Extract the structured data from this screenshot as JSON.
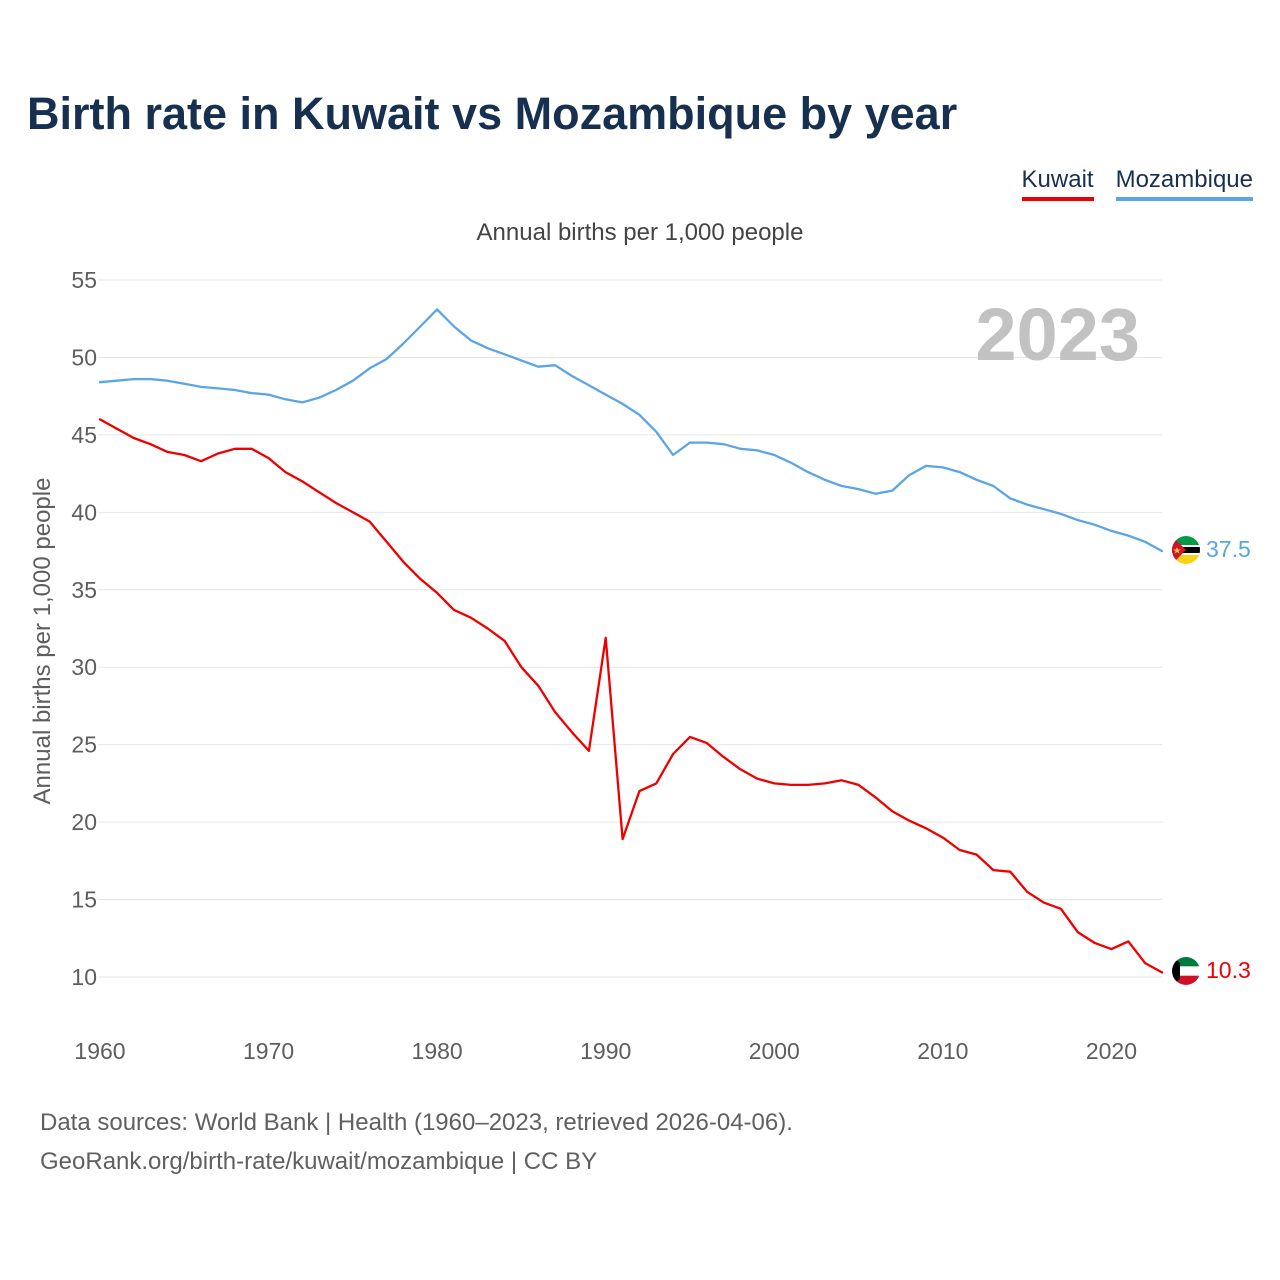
{
  "title": "Birth rate in Kuwait vs Mozambique by year",
  "legend": [
    {
      "label": "Kuwait",
      "color": "#ee0000"
    },
    {
      "label": "Mozambique",
      "color": "#5aa5e6"
    }
  ],
  "subtitle": "Annual births per 1,000 people",
  "year_watermark": "2023",
  "footer": {
    "line1": "Data sources: World Bank | Health (1960–2023, retrieved 2026-04-06).",
    "line2": "GeoRank.org/birth-rate/kuwait/mozambique | CC BY"
  },
  "chart_data": {
    "type": "line",
    "title": "Birth rate in Kuwait vs Mozambique by year",
    "subtitle": "Annual births per 1,000 people",
    "xlabel": "",
    "ylabel": "Annual births per 1,000 people",
    "xlim": [
      1960,
      2023
    ],
    "ylim": [
      10,
      55
    ],
    "x_ticks": [
      1960,
      1970,
      1980,
      1990,
      2000,
      2010,
      2020
    ],
    "y_ticks": [
      10,
      15,
      20,
      25,
      30,
      35,
      40,
      45,
      50,
      55
    ],
    "grid": true,
    "legend_position": "top-right",
    "x": [
      1960,
      1961,
      1962,
      1963,
      1964,
      1965,
      1966,
      1967,
      1968,
      1969,
      1970,
      1971,
      1972,
      1973,
      1974,
      1975,
      1976,
      1977,
      1978,
      1979,
      1980,
      1981,
      1982,
      1983,
      1984,
      1985,
      1986,
      1987,
      1988,
      1989,
      1990,
      1991,
      1992,
      1993,
      1994,
      1995,
      1996,
      1997,
      1998,
      1999,
      2000,
      2001,
      2002,
      2003,
      2004,
      2005,
      2006,
      2007,
      2008,
      2009,
      2010,
      2011,
      2012,
      2013,
      2014,
      2015,
      2016,
      2017,
      2018,
      2019,
      2020,
      2021,
      2022,
      2023
    ],
    "series": [
      {
        "name": "Kuwait",
        "color": "#ee0000",
        "end_label": "10.3",
        "values": [
          46.0,
          45.4,
          44.8,
          44.4,
          43.9,
          43.7,
          43.3,
          43.8,
          44.1,
          44.1,
          43.5,
          42.6,
          42.0,
          41.3,
          40.6,
          40.0,
          39.4,
          38.1,
          36.8,
          35.7,
          34.8,
          33.7,
          33.2,
          32.5,
          31.7,
          30.0,
          28.8,
          27.1,
          25.8,
          24.6,
          31.9,
          18.9,
          22.0,
          22.5,
          24.4,
          25.5,
          25.1,
          24.2,
          23.4,
          22.8,
          22.5,
          22.4,
          22.4,
          22.5,
          22.7,
          22.4,
          21.6,
          20.7,
          20.1,
          19.6,
          19.0,
          18.2,
          17.9,
          16.9,
          16.8,
          15.5,
          14.8,
          14.4,
          12.9,
          12.2,
          11.8,
          12.3,
          10.9,
          10.3
        ]
      },
      {
        "name": "Mozambique",
        "color": "#5aa5e6",
        "end_label": "37.5",
        "values": [
          48.4,
          48.5,
          48.6,
          48.6,
          48.5,
          48.3,
          48.1,
          48.0,
          47.9,
          47.7,
          47.6,
          47.3,
          47.1,
          47.4,
          47.9,
          48.5,
          49.3,
          49.9,
          50.9,
          52.0,
          53.1,
          52.0,
          51.1,
          50.6,
          50.2,
          49.8,
          49.4,
          49.5,
          48.8,
          48.2,
          47.6,
          47.0,
          46.3,
          45.2,
          43.7,
          44.5,
          44.5,
          44.4,
          44.1,
          44.0,
          43.7,
          43.2,
          42.6,
          42.1,
          41.7,
          41.5,
          41.2,
          41.4,
          42.4,
          43.0,
          42.9,
          42.6,
          42.1,
          41.7,
          40.9,
          40.5,
          40.2,
          39.9,
          39.5,
          39.2,
          38.8,
          38.5,
          38.1,
          37.5
        ]
      }
    ]
  }
}
